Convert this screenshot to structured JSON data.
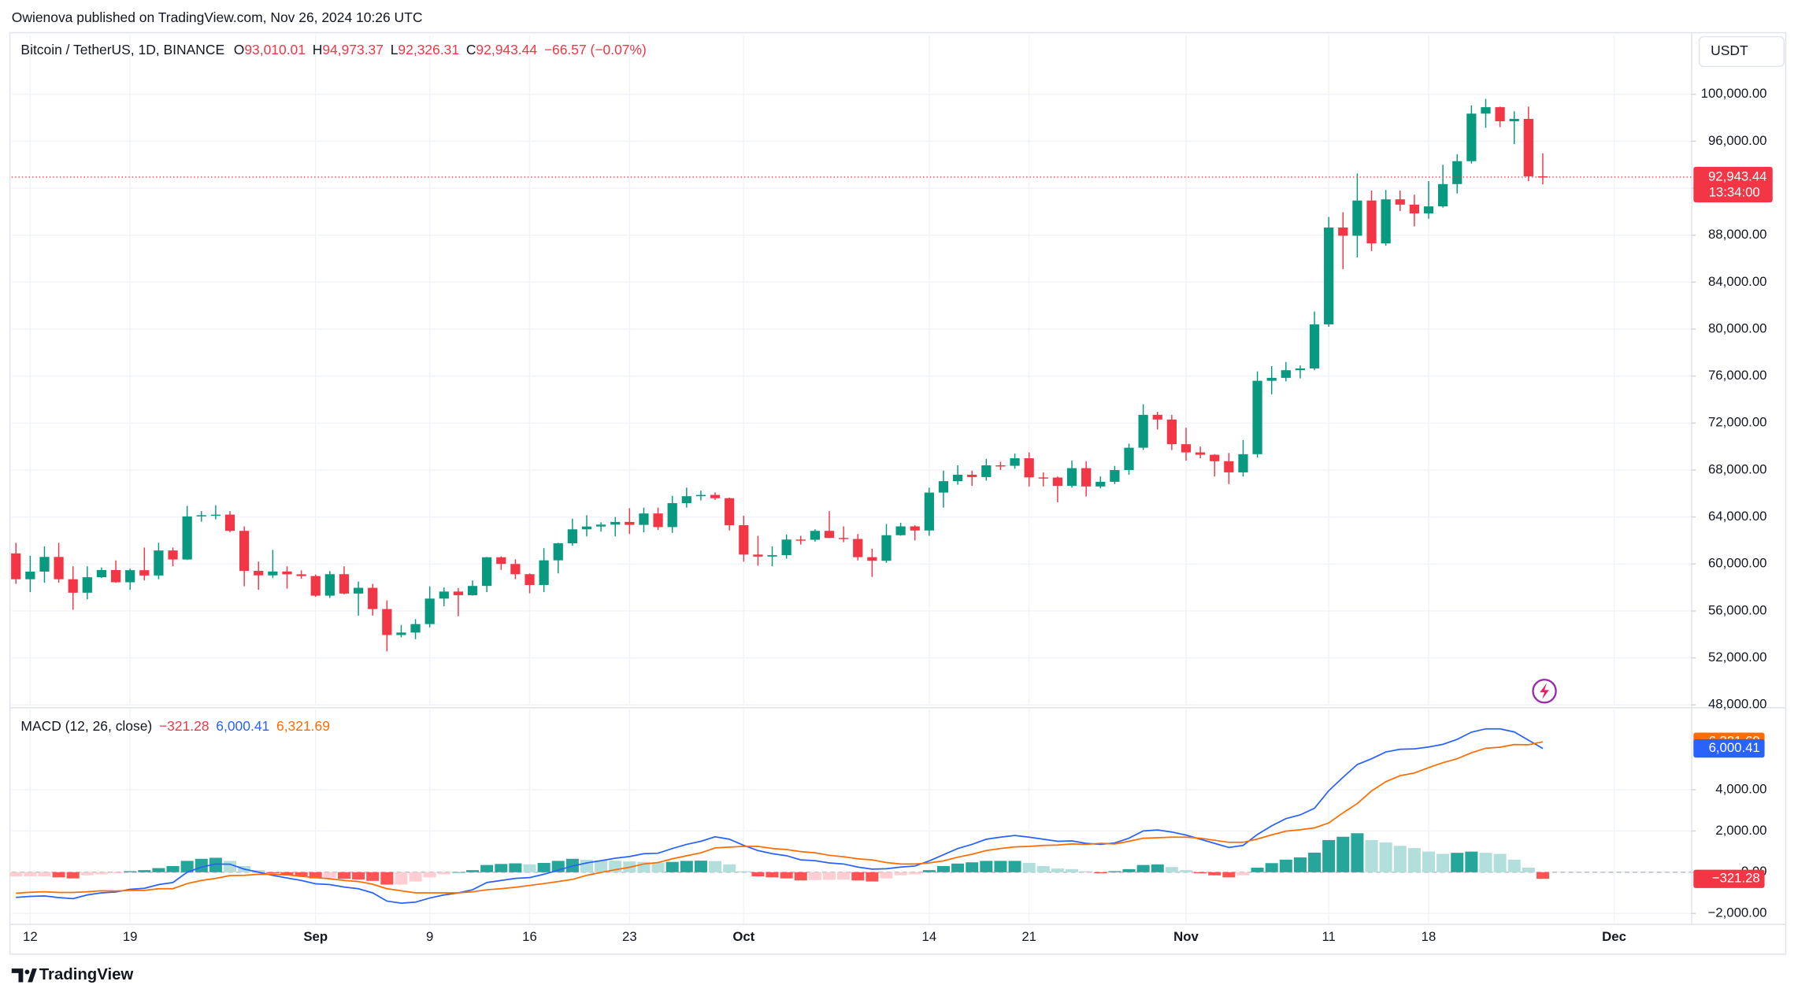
{
  "header": {
    "publisher": "Owienova published on TradingView.com, Nov 26, 2024 10:26 UTC"
  },
  "footer": {
    "brand": "TradingView"
  },
  "chart_data": [
    {
      "type": "candlestick",
      "title": "Bitcoin / TetherUS, 1D, BINANCE",
      "ohlc": [
        {
          "key": "O",
          "value": "93,010.01"
        },
        {
          "key": "H",
          "value": "94,973.37"
        },
        {
          "key": "L",
          "value": "92,326.31"
        },
        {
          "key": "C",
          "value": "92,943.44"
        }
      ],
      "change": "−66.57 (−0.07%)",
      "currency": "USDT",
      "last_price_label": "92,943.44",
      "countdown": "13:34:00",
      "up_color": "#089981",
      "down_color": "#f23645",
      "open": [
        60900,
        58700,
        59350,
        60600,
        58700,
        57550,
        58870,
        59480,
        58440,
        59470,
        59020,
        61150,
        60380,
        64050,
        64150,
        64200,
        62820,
        59410,
        59030,
        59360,
        59120,
        58970,
        57300,
        59130,
        57480,
        57970,
        56160,
        53950,
        54160,
        54880,
        57050,
        57650,
        57340,
        58130,
        60570,
        60000,
        59130,
        58210,
        60310,
        61760,
        62950,
        63190,
        63350,
        63580,
        63330,
        64300,
        63140,
        65180,
        65770,
        65880,
        65600,
        63300,
        60800,
        60630,
        60750,
        62080,
        62060,
        62820,
        62220,
        62130,
        60580,
        60270,
        62450,
        63200,
        62850,
        66080,
        67050,
        67600,
        67400,
        68400,
        68360,
        69000,
        67370,
        67360,
        66650,
        68160,
        66600,
        67000,
        68000,
        69900,
        72700,
        72300,
        70200,
        69500,
        69300,
        68750,
        67800,
        69350,
        75600,
        75850,
        76500,
        76650,
        80400,
        88650,
        87950,
        90950,
        87300,
        91050,
        90600,
        89850,
        90450,
        92350,
        94300,
        98350,
        98900,
        97700,
        97900,
        93010.01
      ],
      "high": [
        61800,
        60700,
        61500,
        61800,
        59800,
        59800,
        59700,
        60300,
        59600,
        61400,
        61800,
        61400,
        64950,
        64500,
        65000,
        64500,
        63200,
        60200,
        61200,
        59800,
        59450,
        59100,
        59400,
        59800,
        58500,
        58300,
        56900,
        54800,
        55300,
        58100,
        58000,
        57950,
        58600,
        60600,
        60650,
        60400,
        59200,
        61350,
        61800,
        63850,
        64150,
        63550,
        64000,
        64750,
        64800,
        64800,
        65800,
        66500,
        66250,
        66100,
        65650,
        64100,
        62400,
        61500,
        62500,
        62400,
        62950,
        64500,
        63200,
        62550,
        61300,
        63400,
        63500,
        63300,
        66500,
        67950,
        68400,
        67950,
        68950,
        68700,
        69400,
        69500,
        67800,
        67450,
        68800,
        68750,
        67450,
        68350,
        70250,
        73600,
        72950,
        72700,
        71600,
        70000,
        69350,
        69450,
        70550,
        76400,
        76850,
        77200,
        76900,
        81500,
        89550,
        89950,
        93250,
        91800,
        91850,
        91800,
        91450,
        92600,
        94000,
        94900,
        99050,
        99600,
        98950,
        98550,
        98950,
        94973.37
      ],
      "low": [
        58300,
        57600,
        58400,
        58400,
        56100,
        57000,
        58800,
        58400,
        57800,
        58600,
        58700,
        59800,
        60340,
        63600,
        63800,
        62700,
        58100,
        57800,
        58800,
        57900,
        58750,
        57200,
        57100,
        57400,
        55600,
        55600,
        52550,
        53750,
        53600,
        54600,
        56400,
        55550,
        57300,
        57600,
        59500,
        58700,
        57500,
        57600,
        59200,
        61550,
        62350,
        62750,
        62350,
        62550,
        62700,
        62900,
        62650,
        64800,
        65400,
        65450,
        62850,
        60200,
        59850,
        59800,
        60450,
        61650,
        61900,
        62200,
        61850,
        60300,
        58900,
        60100,
        62400,
        62000,
        62400,
        64800,
        66750,
        66650,
        67100,
        68000,
        68100,
        66600,
        66600,
        65250,
        66500,
        65750,
        66450,
        66800,
        67600,
        69700,
        71450,
        69700,
        68800,
        69000,
        67450,
        66800,
        67450,
        69050,
        74450,
        75550,
        75800,
        76500,
        80200,
        85100,
        86100,
        86650,
        87100,
        90050,
        88750,
        89400,
        90350,
        91550,
        94100,
        97150,
        97200,
        95750,
        92600,
        92326.31
      ],
      "close": [
        58700,
        59350,
        60600,
        58700,
        57550,
        58870,
        59480,
        58440,
        59470,
        59020,
        61150,
        60380,
        64050,
        64150,
        64200,
        62820,
        59410,
        59030,
        59360,
        59120,
        58970,
        57300,
        59130,
        57480,
        57970,
        56160,
        53950,
        54160,
        54880,
        57050,
        57650,
        57340,
        58130,
        60570,
        60000,
        59130,
        58210,
        60310,
        61760,
        62950,
        63190,
        63350,
        63580,
        63330,
        64300,
        63140,
        65180,
        65770,
        65880,
        65600,
        63300,
        60800,
        60630,
        60750,
        62080,
        62060,
        62820,
        62220,
        62130,
        60580,
        60270,
        62450,
        63200,
        62850,
        66080,
        67050,
        67600,
        67400,
        68400,
        68360,
        69000,
        67370,
        67360,
        66650,
        68160,
        66600,
        67000,
        68000,
        69900,
        72700,
        72300,
        70200,
        69500,
        69300,
        68750,
        67800,
        69350,
        75600,
        75850,
        76500,
        76650,
        80400,
        88650,
        87950,
        90950,
        87300,
        91050,
        90600,
        89850,
        90450,
        92350,
        94300,
        98350,
        98900,
        97700,
        97900,
        93010.01,
        92943.44
      ],
      "xlim": [
        -0.3,
        117.4
      ],
      "xticks": [
        {
          "value": 1,
          "label": "12"
        },
        {
          "value": 8,
          "label": "19"
        },
        {
          "value": 21,
          "label": "Sep"
        },
        {
          "value": 29,
          "label": "9"
        },
        {
          "value": 36,
          "label": "16"
        },
        {
          "value": 43,
          "label": "23"
        },
        {
          "value": 51,
          "label": "Oct"
        },
        {
          "value": 64,
          "label": "14"
        },
        {
          "value": 71,
          "label": "21"
        },
        {
          "value": 82,
          "label": "Nov"
        },
        {
          "value": 92,
          "label": "11"
        },
        {
          "value": 99,
          "label": "18"
        },
        {
          "value": 112,
          "label": "Dec"
        }
      ],
      "ylim": [
        48000,
        105000
      ],
      "yticks": [
        {
          "value": 48000,
          "label": "48,000.00"
        },
        {
          "value": 52000,
          "label": "52,000.00"
        },
        {
          "value": 56000,
          "label": "56,000.00"
        },
        {
          "value": 60000,
          "label": "60,000.00"
        },
        {
          "value": 64000,
          "label": "64,000.00"
        },
        {
          "value": 68000,
          "label": "68,000.00"
        },
        {
          "value": 72000,
          "label": "72,000.00"
        },
        {
          "value": 76000,
          "label": "76,000.00"
        },
        {
          "value": 80000,
          "label": "80,000.00"
        },
        {
          "value": 84000,
          "label": "84,000.00"
        },
        {
          "value": 88000,
          "label": "88,000.00"
        },
        {
          "value": 92000,
          "label": "92,000.00"
        },
        {
          "value": 96000,
          "label": "96,000.00"
        },
        {
          "value": 100000,
          "label": "100,000.00"
        }
      ],
      "grid": true
    },
    {
      "type": "macd",
      "title": "MACD (12, 26, close)",
      "ylim": [
        -2500,
        7890
      ],
      "yticks": [
        {
          "value": -2000,
          "label": "−2,000.00"
        },
        {
          "value": 0,
          "label": "0.00"
        },
        {
          "value": 2000,
          "label": "2,000.00"
        },
        {
          "value": 4000,
          "label": "4,000.00"
        }
      ],
      "grid": true,
      "series": [
        {
          "color": "#f23645",
          "colors": [
            "#26a69a",
            "#b2dfdb",
            "#ffcdd2",
            "#ff5252"
          ],
          "value_label": "−321.28",
          "values": [
            -200,
            -200,
            -200,
            -250,
            -300,
            -150,
            -100,
            -50,
            50,
            100,
            200,
            300,
            550,
            650,
            700,
            550,
            300,
            100,
            -50,
            -150,
            -200,
            -300,
            -280,
            -320,
            -350,
            -420,
            -600,
            -600,
            -450,
            -250,
            -100,
            0,
            100,
            350,
            400,
            430,
            380,
            450,
            550,
            650,
            600,
            570,
            560,
            520,
            500,
            450,
            500,
            550,
            560,
            540,
            380,
            50,
            -200,
            -250,
            -300,
            -400,
            -380,
            -370,
            -350,
            -400,
            -450,
            -300,
            -150,
            -100,
            100,
            300,
            420,
            480,
            550,
            550,
            550,
            450,
            300,
            180,
            150,
            50,
            -50,
            50,
            150,
            350,
            380,
            250,
            100,
            -50,
            -150,
            -250,
            -150,
            220,
            440,
            610,
            720,
            950,
            1560,
            1720,
            1890,
            1560,
            1440,
            1280,
            1170,
            1000,
            890,
            940,
            1000,
            940,
            890,
            610,
            220,
            -321.28
          ]
        },
        {
          "color": "#2962ff",
          "value_label": "6,000.41",
          "values": [
            -1220,
            -1170,
            -1150,
            -1230,
            -1280,
            -1100,
            -1000,
            -960,
            -830,
            -780,
            -600,
            -500,
            0,
            250,
            400,
            390,
            150,
            0,
            -150,
            -280,
            -400,
            -560,
            -600,
            -720,
            -800,
            -1000,
            -1400,
            -1500,
            -1450,
            -1250,
            -1100,
            -1000,
            -850,
            -500,
            -400,
            -300,
            -260,
            -100,
            100,
            300,
            450,
            560,
            680,
            760,
            900,
            920,
            1150,
            1350,
            1500,
            1720,
            1600,
            1300,
            1050,
            900,
            800,
            600,
            560,
            450,
            400,
            250,
            150,
            170,
            250,
            300,
            550,
            850,
            1150,
            1350,
            1600,
            1700,
            1780,
            1700,
            1600,
            1500,
            1520,
            1400,
            1350,
            1420,
            1650,
            2000,
            2050,
            1950,
            1800,
            1600,
            1400,
            1200,
            1300,
            1830,
            2250,
            2600,
            2780,
            3100,
            3950,
            4600,
            5220,
            5500,
            5830,
            5960,
            5980,
            6070,
            6200,
            6440,
            6790,
            6950,
            6950,
            6800,
            6400,
            6000.41
          ]
        },
        {
          "color": "#ff6d00",
          "value_label": "6,321.69",
          "values": [
            -1020,
            -970,
            -950,
            -980,
            -980,
            -950,
            -900,
            -910,
            -880,
            -880,
            -800,
            -800,
            -550,
            -400,
            -300,
            -160,
            -150,
            -100,
            -100,
            -130,
            -200,
            -260,
            -320,
            -400,
            -450,
            -580,
            -800,
            -900,
            -1000,
            -1000,
            -1000,
            -1000,
            -950,
            -850,
            -800,
            -730,
            -640,
            -550,
            -450,
            -350,
            -150,
            -10,
            120,
            240,
            400,
            470,
            650,
            800,
            940,
            1180,
            1220,
            1250,
            1250,
            1150,
            1100,
            1000,
            940,
            820,
            750,
            650,
            600,
            470,
            400,
            400,
            450,
            550,
            730,
            870,
            1050,
            1150,
            1230,
            1250,
            1300,
            1320,
            1370,
            1350,
            1400,
            1370,
            1500,
            1650,
            1670,
            1700,
            1700,
            1650,
            1550,
            1450,
            1450,
            1610,
            1810,
            1990,
            2060,
            2150,
            2390,
            2880,
            3330,
            3940,
            4390,
            4680,
            4810,
            5070,
            5310,
            5500,
            5790,
            6010,
            6060,
            6190,
            6180,
            6321.69
          ]
        }
      ]
    }
  ]
}
